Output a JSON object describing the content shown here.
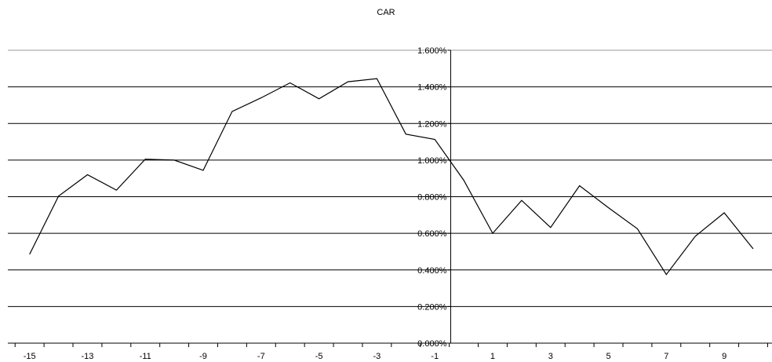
{
  "chart_data": {
    "type": "line",
    "title": "CAR",
    "xlabel": "",
    "ylabel": "",
    "x": [
      -15,
      -14,
      -13,
      -12,
      -11,
      -10,
      -9,
      -8,
      -7,
      -6,
      -5,
      -4,
      -3,
      -2,
      -1,
      0,
      1,
      2,
      3,
      4,
      5,
      6,
      7,
      8,
      9,
      10
    ],
    "x_tick_labels": [
      "-15",
      "-13",
      "-11",
      "-9",
      "-7",
      "-5",
      "-3",
      "-1",
      "1",
      "3",
      "5",
      "7",
      "9"
    ],
    "series": [
      {
        "values": [
          0.485,
          0.803,
          0.92,
          0.836,
          1.005,
          1.0,
          0.944,
          1.266,
          1.34,
          1.422,
          1.335,
          1.428,
          1.445,
          1.142,
          1.113,
          0.89,
          0.6,
          0.78,
          0.632,
          0.86,
          0.74,
          0.625,
          0.375,
          0.584,
          0.712,
          0.515
        ]
      }
    ],
    "ylim": [
      0,
      1.6
    ],
    "y_ticks": [
      0,
      0.2,
      0.4,
      0.6,
      0.8,
      1.0,
      1.2,
      1.4,
      1.6
    ],
    "y_tick_labels": [
      "0.000%",
      "0.200%",
      "0.400%",
      "0.600%",
      "0.800%",
      "1.000%",
      "1.200%",
      "1.400%",
      "1.600%"
    ],
    "grid": true,
    "legend": "none"
  }
}
